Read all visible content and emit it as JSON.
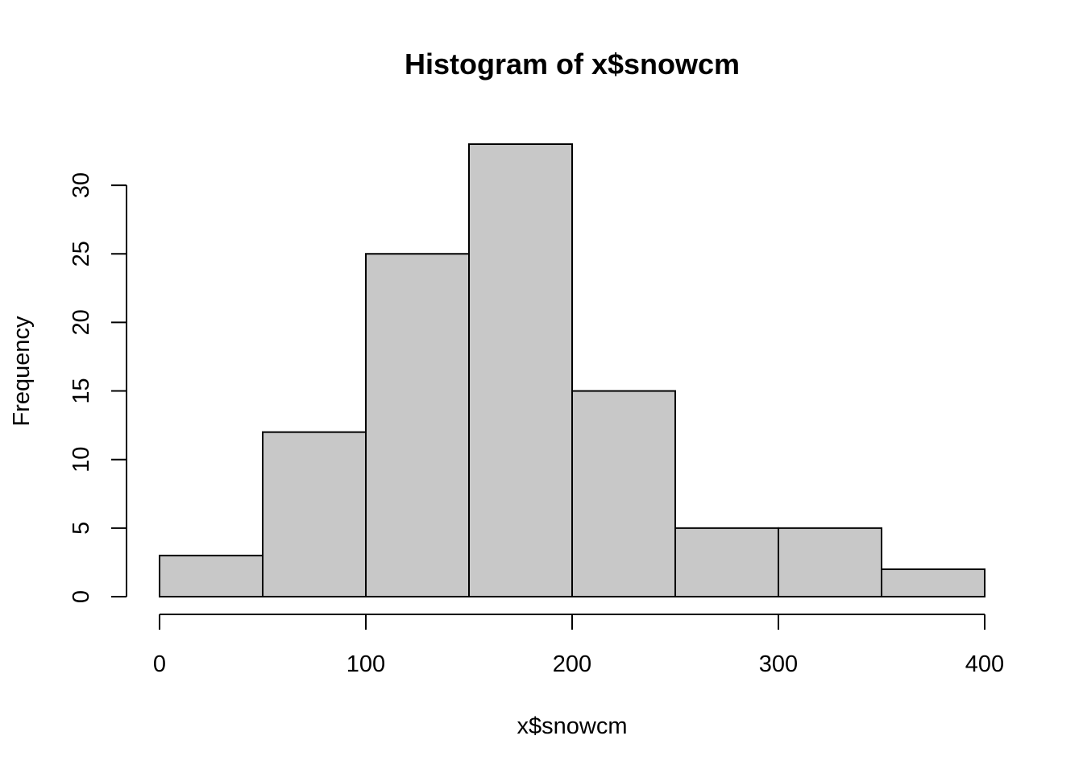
{
  "chart_data": {
    "type": "bar",
    "title": "Histogram of x$snowcm",
    "xlabel": "x$snowcm",
    "ylabel": "Frequency",
    "bins": [
      {
        "start": 0,
        "end": 50,
        "count": 3
      },
      {
        "start": 50,
        "end": 100,
        "count": 12
      },
      {
        "start": 100,
        "end": 150,
        "count": 25
      },
      {
        "start": 150,
        "end": 200,
        "count": 33
      },
      {
        "start": 200,
        "end": 250,
        "count": 15
      },
      {
        "start": 250,
        "end": 300,
        "count": 5
      },
      {
        "start": 300,
        "end": 350,
        "count": 5
      },
      {
        "start": 350,
        "end": 400,
        "count": 2
      }
    ],
    "xlim": [
      0,
      400
    ],
    "ylim": [
      0,
      33
    ],
    "x_ticks": [
      "0",
      "100",
      "200",
      "300",
      "400"
    ],
    "y_ticks": [
      "0",
      "5",
      "10",
      "15",
      "20",
      "25",
      "30"
    ],
    "bar_color": "#c8c8c8",
    "grid": false,
    "legend": "none"
  }
}
